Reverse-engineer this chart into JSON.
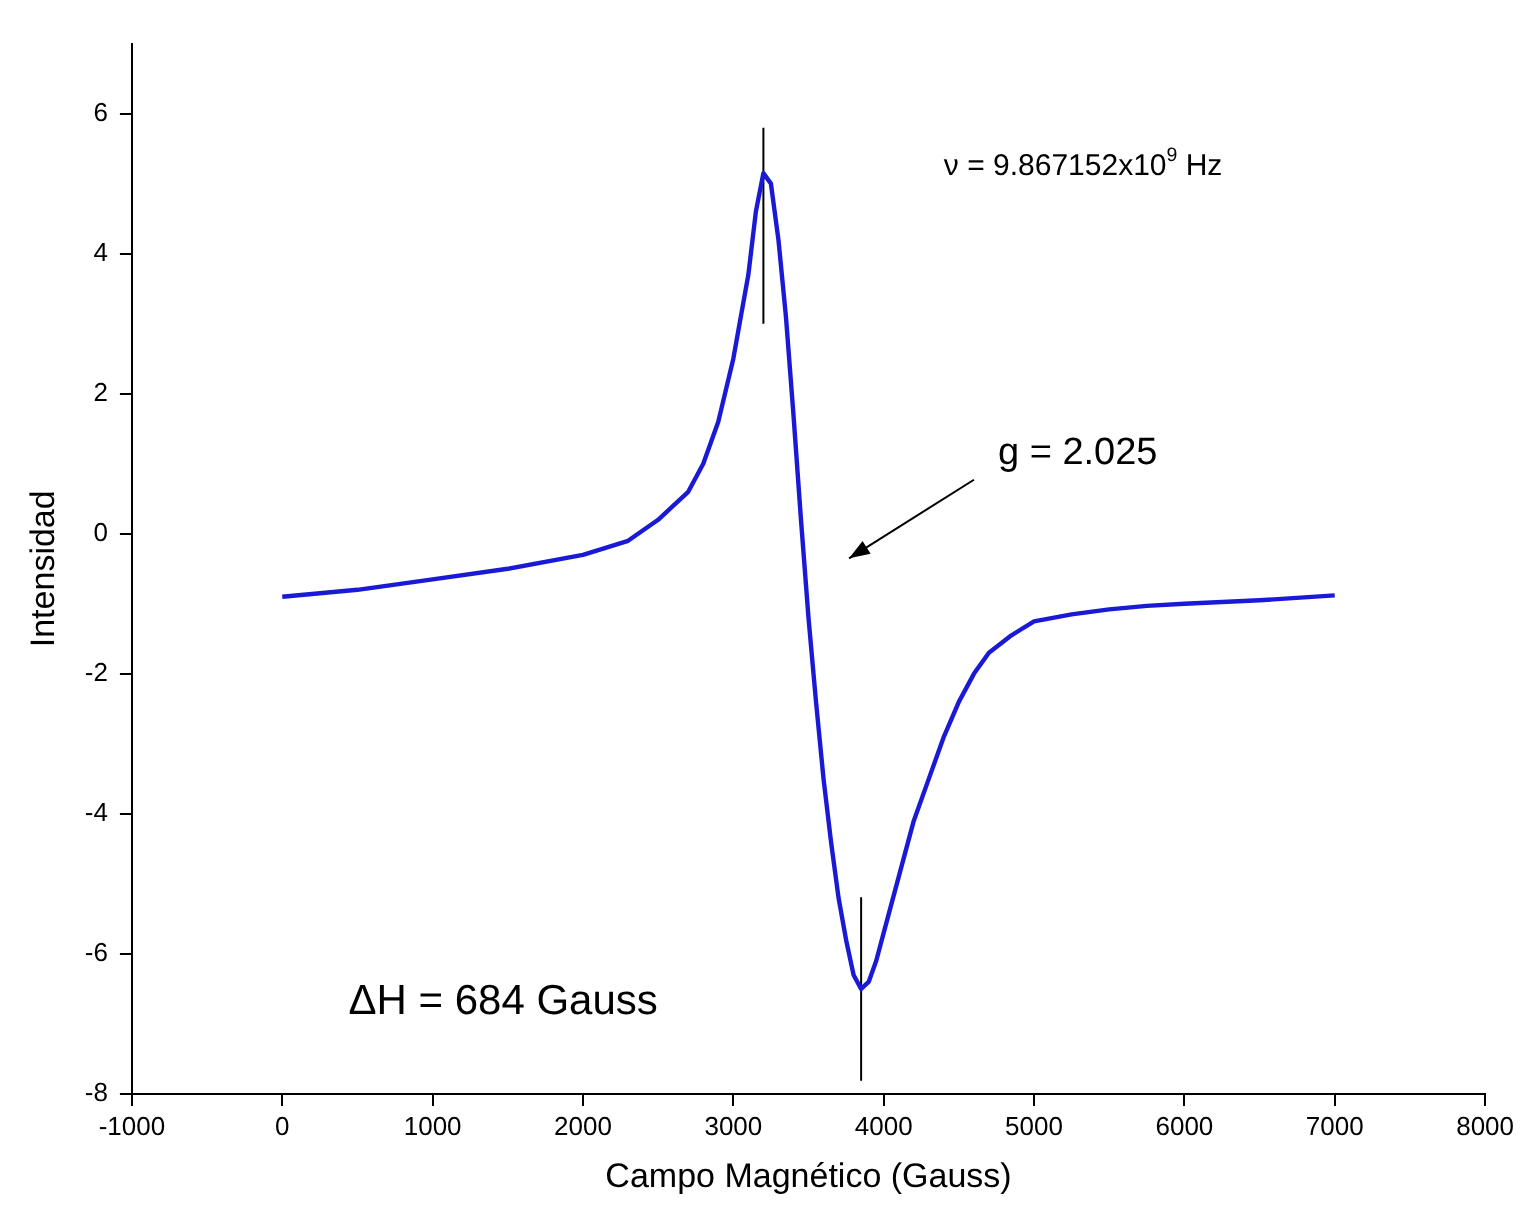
{
  "chart_data": {
    "type": "line",
    "xlabel": "Campo Magnético (Gauss)",
    "ylabel": "Intensidad",
    "series": [
      {
        "color": "#1a1ad6",
        "x": [
          0,
          500,
          1000,
          1500,
          2000,
          2300,
          2500,
          2700,
          2800,
          2900,
          3000,
          3100,
          3150,
          3200,
          3250,
          3300,
          3350,
          3400,
          3450,
          3500,
          3550,
          3600,
          3650,
          3700,
          3750,
          3800,
          3850,
          3900,
          3950,
          4000,
          4100,
          4200,
          4300,
          4400,
          4500,
          4600,
          4700,
          4850,
          5000,
          5250,
          5500,
          5750,
          6000,
          6500,
          7000
        ],
        "values": [
          -0.9,
          -0.8,
          -0.65,
          -0.5,
          -0.3,
          -0.1,
          0.2,
          0.6,
          1.0,
          1.6,
          2.5,
          3.7,
          4.6,
          5.15,
          5.0,
          4.2,
          3.1,
          1.7,
          0.2,
          -1.2,
          -2.4,
          -3.5,
          -4.4,
          -5.2,
          -5.8,
          -6.3,
          -6.5,
          -6.4,
          -6.1,
          -5.7,
          -4.9,
          -4.1,
          -3.5,
          -2.9,
          -2.4,
          -2.0,
          -1.7,
          -1.45,
          -1.25,
          -1.15,
          -1.08,
          -1.03,
          -1.0,
          -0.95,
          -0.88
        ]
      },
      {
        "color": "#000000",
        "x": [
          3200,
          3200
        ],
        "values": [
          3.0,
          5.8
        ]
      },
      {
        "color": "#000000",
        "x": [
          3850,
          3850
        ],
        "values": [
          -5.2,
          -7.8
        ]
      }
    ],
    "xlim": [
      -1000,
      8000
    ],
    "xticks": [
      -1000,
      0,
      1000,
      2000,
      3000,
      4000,
      5000,
      6000,
      7000,
      8000
    ],
    "ylim": [
      -8,
      7
    ],
    "yticks": [
      -8,
      -6,
      -4,
      -2,
      0,
      2,
      4,
      6
    ],
    "grid": false,
    "legend": false,
    "marker": "none",
    "line_style": "solid",
    "annotations": [
      "ν = 9.867152x10$^{9}$ Hz",
      "g = 2.025",
      "ΔH = 684 Gauss"
    ]
  }
}
